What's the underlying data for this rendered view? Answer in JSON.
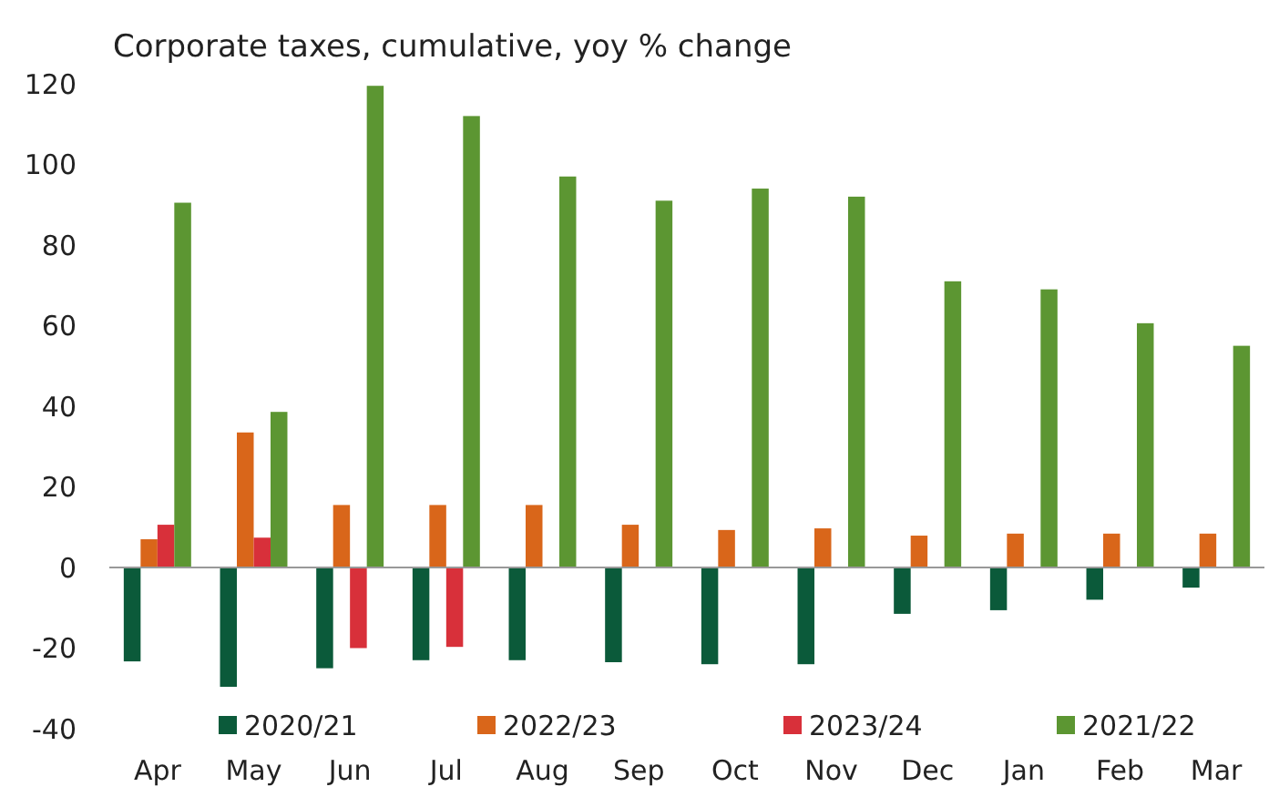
{
  "chart_data": {
    "type": "bar",
    "title": "Corporate taxes, cumulative, yoy % change",
    "categories": [
      "Apr",
      "May",
      "Jun",
      "Jul",
      "Aug",
      "Sep",
      "Oct",
      "Nov",
      "Dec",
      "Jan",
      "Feb",
      "Mar"
    ],
    "series": [
      {
        "name": "2020/21",
        "color": "#0b5a3a",
        "values": [
          -23.3,
          -29.6,
          -25,
          -23,
          -23,
          -23.5,
          -24,
          -24,
          -11.5,
          -10.6,
          -8,
          -5
        ]
      },
      {
        "name": "2022/23",
        "color": "#d9661a",
        "values": [
          7,
          33.5,
          15.5,
          15.5,
          15.5,
          10.6,
          9.3,
          9.7,
          7.9,
          8.4,
          8.4,
          8.4
        ]
      },
      {
        "name": "2023/24",
        "color": "#d8303a",
        "values": [
          10.6,
          7.4,
          -20,
          -19.7,
          null,
          null,
          null,
          null,
          null,
          null,
          null,
          null
        ]
      },
      {
        "name": "2021/22",
        "color": "#5c9632",
        "values": [
          90.5,
          38.6,
          119.5,
          112,
          97,
          91,
          94,
          92,
          71,
          69,
          60.6,
          55
        ]
      }
    ],
    "ylim": [
      -40,
      120
    ],
    "yticks": [
      -40,
      -20,
      0,
      20,
      40,
      60,
      80,
      100,
      120
    ],
    "legend": "bottom"
  }
}
